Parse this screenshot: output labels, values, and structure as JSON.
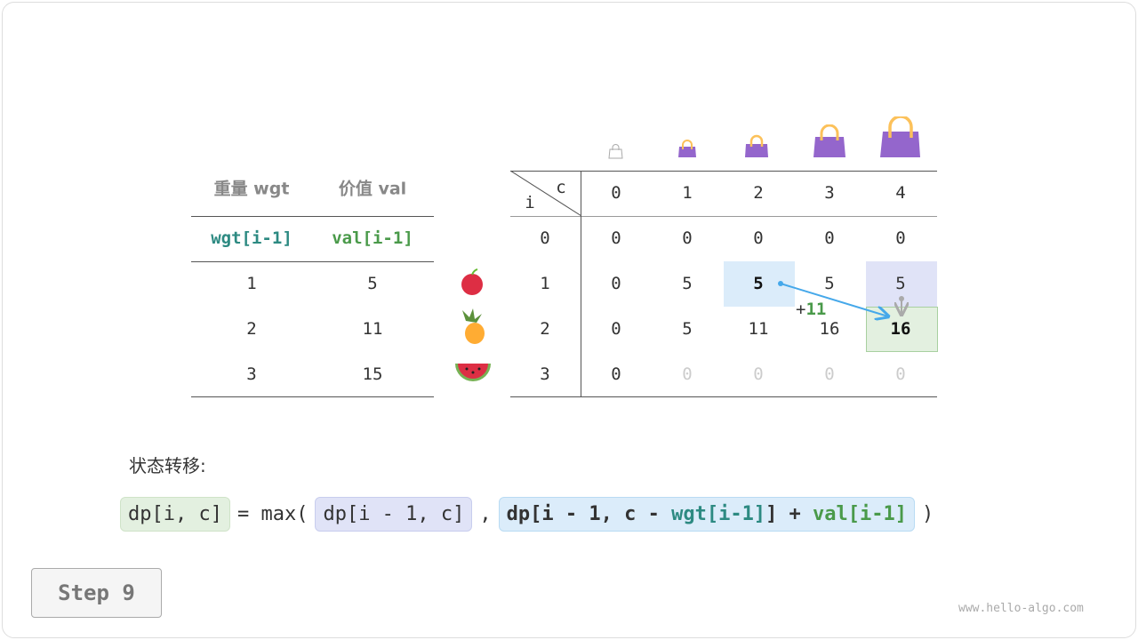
{
  "items_table": {
    "headers": [
      "重量 wgt",
      "价值 val"
    ],
    "subheaders": [
      "wgt[i-1]",
      "val[i-1]"
    ],
    "rows": [
      [
        "1",
        "5"
      ],
      [
        "2",
        "11"
      ],
      [
        "3",
        "15"
      ]
    ],
    "fruit_icons": [
      "apple-icon",
      "pineapple-icon",
      "watermelon-icon"
    ]
  },
  "dp_table": {
    "corner_i": "i",
    "corner_c": "c",
    "capacities": [
      "0",
      "1",
      "2",
      "3",
      "4"
    ],
    "row_labels": [
      "0",
      "1",
      "2",
      "3"
    ],
    "rows": [
      [
        "0",
        "0",
        "0",
        "0",
        "0"
      ],
      [
        "0",
        "5",
        "5",
        "5",
        "5"
      ],
      [
        "0",
        "5",
        "11",
        "16",
        "16"
      ],
      [
        "0",
        "0",
        "0",
        "0",
        "0"
      ]
    ],
    "bag_icons": [
      "bag-empty-icon",
      "bag-icon",
      "bag-icon",
      "bag-icon",
      "bag-icon"
    ],
    "annotation": {
      "plus": "+",
      "value": "11"
    }
  },
  "transition_label": "状态转移:",
  "formula": {
    "lhs": "dp[i, c]",
    "eq": "= max(",
    "arg1": "dp[i - 1, c]",
    "comma": ",",
    "arg2_a": "dp[i - 1, c - ",
    "arg2_wgt": "wgt[i-1]",
    "arg2_b": "] + ",
    "arg2_val": "val[i-1]",
    "close": ")"
  },
  "step_button": "Step 9",
  "watermark": "www.hello-algo.com",
  "colors": {
    "teal": "#2d8a82",
    "green": "#4a9a4a",
    "blue_cell": "#dbecfa",
    "lavender_cell": "#e0e3f7",
    "green_cell": "#e3f0e0",
    "bag": "#9466cc",
    "arrow": "#45a8ea"
  }
}
